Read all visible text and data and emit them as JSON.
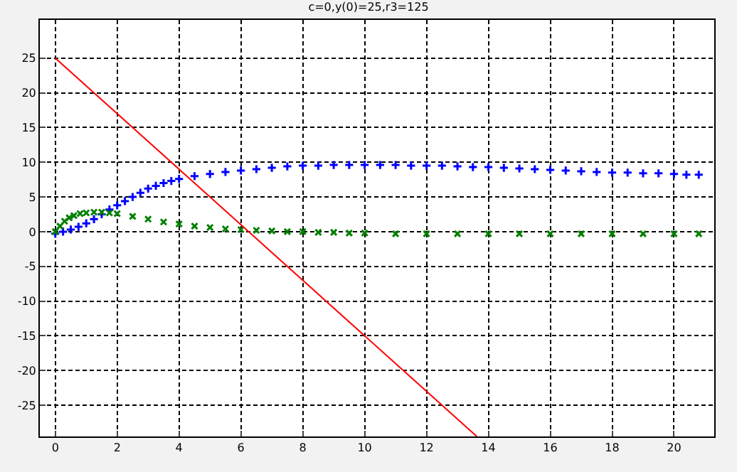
{
  "chart_data": {
    "type": "line",
    "title": "c=0,y(0)=25,r3=125",
    "xlim": [
      -0.5,
      21.3
    ],
    "ylim": [
      -29.5,
      30.5
    ],
    "xticks": [
      0,
      2,
      4,
      6,
      8,
      10,
      12,
      14,
      16,
      18,
      20
    ],
    "yticks": [
      -25,
      -20,
      -15,
      -10,
      -5,
      0,
      5,
      10,
      15,
      20,
      25
    ],
    "grid": true,
    "series": [
      {
        "type": "scatter",
        "color": "#0000ff",
        "marker": "cross",
        "x": [
          0,
          0.25,
          0.5,
          0.75,
          1,
          1.25,
          1.5,
          1.75,
          2,
          2.25,
          2.5,
          2.75,
          3,
          3.25,
          3.5,
          3.75,
          4,
          4.5,
          5,
          5.5,
          6,
          6.5,
          7,
          7.5,
          8,
          8.5,
          9,
          9.5,
          10,
          10.5,
          11,
          11.5,
          12,
          12.5,
          13,
          13.5,
          14,
          14.5,
          15,
          15.5,
          16,
          16.5,
          17,
          17.5,
          18,
          18.5,
          19,
          19.5,
          20,
          20.4,
          20.8
        ],
        "values": [
          -0.3,
          0,
          0.3,
          0.7,
          1.2,
          1.8,
          2.5,
          3.2,
          3.8,
          4.4,
          5,
          5.6,
          6.2,
          6.6,
          7,
          7.3,
          7.6,
          8,
          8.3,
          8.6,
          8.8,
          9,
          9.2,
          9.4,
          9.5,
          9.5,
          9.6,
          9.6,
          9.6,
          9.6,
          9.6,
          9.5,
          9.5,
          9.5,
          9.4,
          9.3,
          9.3,
          9.2,
          9.1,
          9,
          8.9,
          8.8,
          8.7,
          8.6,
          8.5,
          8.5,
          8.4,
          8.4,
          8.3,
          8.2,
          8.2
        ]
      },
      {
        "type": "scatter",
        "color": "#008000",
        "marker": "x",
        "x": [
          0,
          0.15,
          0.3,
          0.45,
          0.6,
          0.8,
          1,
          1.25,
          1.5,
          1.75,
          2,
          2.5,
          3,
          3.5,
          4,
          4.5,
          5,
          5.5,
          6,
          6.5,
          7,
          7.5,
          8,
          8.5,
          9,
          9.5,
          10,
          11,
          12,
          13,
          14,
          15,
          16,
          17,
          18,
          19,
          20,
          20.8
        ],
        "values": [
          0,
          0.8,
          1.5,
          2,
          2.3,
          2.6,
          2.7,
          2.8,
          2.8,
          2.7,
          2.6,
          2.2,
          1.8,
          1.4,
          1.1,
          0.8,
          0.6,
          0.4,
          0.3,
          0.2,
          0.1,
          0,
          0,
          -0.1,
          -0.1,
          -0.2,
          -0.2,
          -0.3,
          -0.3,
          -0.3,
          -0.3,
          -0.3,
          -0.3,
          -0.3,
          -0.3,
          -0.3,
          -0.3,
          -0.3
        ]
      },
      {
        "color": "#ff0000",
        "marker": "none",
        "line_style": "solid",
        "x": [
          0,
          13.625
        ],
        "values": [
          25,
          -29.5
        ]
      }
    ]
  }
}
